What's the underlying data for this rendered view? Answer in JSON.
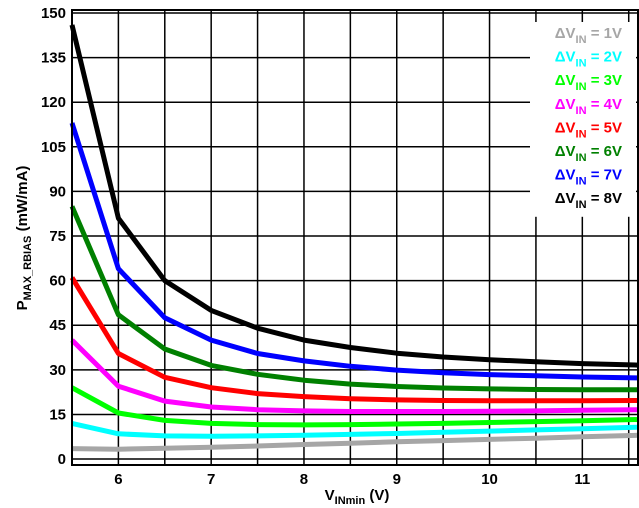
{
  "chart_data": {
    "type": "line",
    "xlabel": {
      "main": "V",
      "sub": "INmin",
      "unit": " (V)"
    },
    "ylabel": {
      "main": "P",
      "sub": "MAX_RBIAS",
      "unit": " (mW/mA)"
    },
    "xlim": [
      5.5,
      11.6
    ],
    "ylim": [
      -2,
      151
    ],
    "x_ticks": [
      6,
      7,
      8,
      9,
      10,
      11
    ],
    "x_tick_labels": [
      "6",
      "7",
      "8",
      "9",
      "10",
      "11"
    ],
    "y_ticks": [
      0,
      15,
      30,
      45,
      60,
      75,
      90,
      105,
      120,
      135,
      150
    ],
    "y_tick_labels": [
      "0",
      "15",
      "30",
      "45",
      "60",
      "75",
      "90",
      "105",
      "120",
      "135",
      "150"
    ],
    "grid": true,
    "legend_position": "top-right",
    "x": [
      5.5,
      6,
      6.5,
      7,
      7.5,
      8,
      8.5,
      9,
      9.5,
      10,
      10.5,
      11,
      11.6
    ],
    "series": [
      {
        "name": "ΔV",
        "name_sub": "IN",
        "name_tail": " = 1V",
        "color": "#a6a6a6",
        "values": [
          3.5,
          3.3,
          3.6,
          4.0,
          4.4,
          4.9,
          5.3,
          5.8,
          6.2,
          6.6,
          7.0,
          7.5,
          8.0
        ]
      },
      {
        "name": "ΔV",
        "name_sub": "IN",
        "name_tail": " = 2V",
        "color": "#00ffff",
        "values": [
          12,
          8.5,
          7.8,
          7.7,
          7.8,
          8.0,
          8.3,
          8.6,
          9.0,
          9.4,
          9.8,
          10.2,
          10.7
        ]
      },
      {
        "name": "ΔV",
        "name_sub": "IN",
        "name_tail": " = 3V",
        "color": "#00ff00",
        "values": [
          24,
          15.5,
          13,
          12,
          11.6,
          11.5,
          11.6,
          11.8,
          12.0,
          12.3,
          12.6,
          12.9,
          13.3
        ]
      },
      {
        "name": "ΔV",
        "name_sub": "IN",
        "name_tail": " = 4V",
        "color": "#ff00ff",
        "values": [
          40,
          24.5,
          19.5,
          17.5,
          16.6,
          16.2,
          16.0,
          16.0,
          16.0,
          16.1,
          16.2,
          16.4,
          16.6
        ]
      },
      {
        "name": "ΔV",
        "name_sub": "IN",
        "name_tail": " = 5V",
        "color": "#ff0000",
        "values": [
          61,
          35.5,
          27.5,
          24,
          22,
          21,
          20.3,
          19.9,
          19.7,
          19.6,
          19.6,
          19.6,
          19.7
        ]
      },
      {
        "name": "ΔV",
        "name_sub": "IN",
        "name_tail": " = 6V",
        "color": "#008000",
        "values": [
          85,
          48.5,
          37,
          31.5,
          28.5,
          26.5,
          25.2,
          24.4,
          23.9,
          23.6,
          23.4,
          23.3,
          23.3
        ]
      },
      {
        "name": "ΔV",
        "name_sub": "IN",
        "name_tail": " = 7V",
        "color": "#0000ff",
        "values": [
          113,
          64,
          47.5,
          40,
          35.5,
          33,
          31.2,
          29.9,
          29.0,
          28.4,
          28.0,
          27.6,
          27.3
        ]
      },
      {
        "name": "ΔV",
        "name_sub": "IN",
        "name_tail": " = 8V",
        "color": "#000000",
        "values": [
          146,
          81,
          60,
          50,
          44,
          40,
          37.5,
          35.6,
          34.3,
          33.4,
          32.7,
          32.1,
          31.6
        ]
      }
    ]
  }
}
